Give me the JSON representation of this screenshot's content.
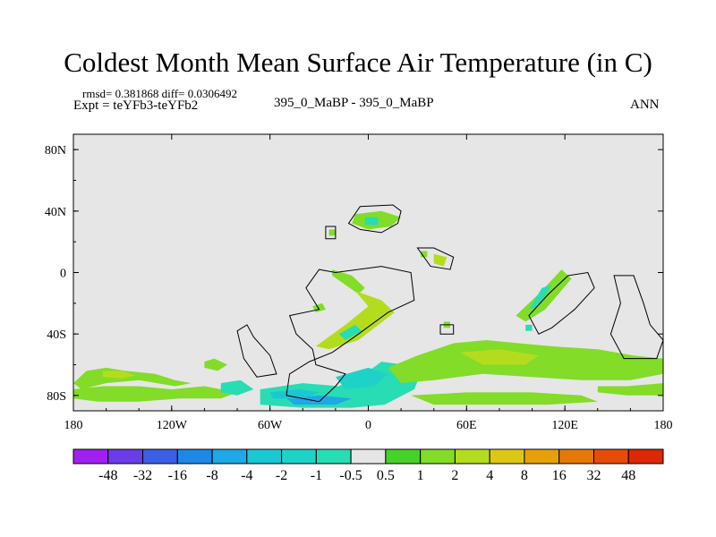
{
  "header": {
    "title": "Coldest Month Mean Surface Air Temperature (in C)",
    "stats": "rmsd= 0.381868  diff= 0.0306492",
    "experiment": "Expt = teYFb3-teYFb2",
    "center_label": "395_0_MaBP - 395_0_MaBP",
    "right_label": "ANN"
  },
  "chart_data": {
    "type": "heatmap",
    "title": "Coldest Month Mean Surface Air Temperature (in C)",
    "xlabel": "",
    "ylabel": "",
    "xlim": [
      -180,
      180
    ],
    "ylim": [
      -90,
      90
    ],
    "x_ticks": [
      {
        "value": -180,
        "label": "180"
      },
      {
        "value": -120,
        "label": "120W"
      },
      {
        "value": -60,
        "label": "60W"
      },
      {
        "value": 0,
        "label": "0"
      },
      {
        "value": 60,
        "label": "60E"
      },
      {
        "value": 120,
        "label": "120E"
      },
      {
        "value": 180,
        "label": "180"
      }
    ],
    "y_ticks": [
      {
        "value": 80,
        "label": "80N"
      },
      {
        "value": 40,
        "label": "40N"
      },
      {
        "value": 0,
        "label": "0"
      },
      {
        "value": -40,
        "label": "40S"
      },
      {
        "value": -80,
        "label": "80S"
      }
    ],
    "background_color": "#e6e6e6",
    "colorbar": {
      "labels": [
        "-48",
        "-32",
        "-16",
        "-8",
        "-4",
        "-2",
        "-1",
        "-0.5",
        "0.5",
        "1",
        "2",
        "4",
        "8",
        "16",
        "32",
        "48"
      ],
      "colors": [
        "#a020f0",
        "#6a3de6",
        "#3c5fe6",
        "#1e88e6",
        "#1ea8e6",
        "#19c8d2",
        "#1ed2c8",
        "#28dcb4",
        "#e6e6e6",
        "#46d228",
        "#82dc28",
        "#b4dc1e",
        "#dcc814",
        "#e6a00a",
        "#e6780a",
        "#e64b0a",
        "#dc2805"
      ]
    },
    "regions": [
      {
        "name": "south-pacific-band",
        "cat": 10,
        "poly": [
          [
            -180,
            -72
          ],
          [
            -172,
            -64
          ],
          [
            -160,
            -62
          ],
          [
            -148,
            -64
          ],
          [
            -130,
            -66
          ],
          [
            -118,
            -70
          ],
          [
            -108,
            -72
          ],
          [
            -118,
            -74
          ],
          [
            -140,
            -70
          ],
          [
            -160,
            -72
          ],
          [
            -175,
            -76
          ]
        ]
      },
      {
        "name": "south-pacific-core",
        "cat": 11,
        "poly": [
          [
            -162,
            -64
          ],
          [
            -150,
            -64
          ],
          [
            -142,
            -67
          ],
          [
            -150,
            -69
          ],
          [
            -162,
            -68
          ]
        ]
      },
      {
        "name": "antarctic-west-band",
        "cat": 10,
        "poly": [
          [
            -180,
            -76
          ],
          [
            -162,
            -74
          ],
          [
            -140,
            -74
          ],
          [
            -120,
            -76
          ],
          [
            -100,
            -74
          ],
          [
            -80,
            -78
          ],
          [
            -90,
            -82
          ],
          [
            -115,
            -82
          ],
          [
            -140,
            -84
          ],
          [
            -165,
            -84
          ],
          [
            -180,
            -82
          ]
        ]
      },
      {
        "name": "antarctic-west-cyan",
        "cat": 7,
        "poly": [
          [
            -90,
            -72
          ],
          [
            -78,
            -70
          ],
          [
            -70,
            -76
          ],
          [
            -80,
            -80
          ],
          [
            -90,
            -78
          ]
        ]
      },
      {
        "name": "antarctic-atlantic-cyan",
        "cat": 7,
        "poly": [
          [
            -66,
            -76
          ],
          [
            -40,
            -72
          ],
          [
            -18,
            -74
          ],
          [
            -2,
            -66
          ],
          [
            8,
            -58
          ],
          [
            22,
            -60
          ],
          [
            32,
            -66
          ],
          [
            28,
            -76
          ],
          [
            10,
            -86
          ],
          [
            -10,
            -88
          ],
          [
            -40,
            -88
          ],
          [
            -66,
            -86
          ]
        ]
      },
      {
        "name": "antarctic-atlantic-blue",
        "cat": 4,
        "poly": [
          [
            -50,
            -82
          ],
          [
            -30,
            -80
          ],
          [
            -10,
            -82
          ],
          [
            -20,
            -86
          ],
          [
            -45,
            -86
          ]
        ]
      },
      {
        "name": "antarctic-atlantic-deep",
        "cat": 5,
        "poly": [
          [
            -60,
            -78
          ],
          [
            -42,
            -76
          ],
          [
            -30,
            -78
          ],
          [
            -40,
            -82
          ],
          [
            -58,
            -82
          ]
        ]
      },
      {
        "name": "antarctic-atlantic-aqua",
        "cat": 6,
        "poly": [
          [
            -20,
            -68
          ],
          [
            0,
            -62
          ],
          [
            12,
            -66
          ],
          [
            4,
            -74
          ],
          [
            -14,
            -76
          ]
        ]
      },
      {
        "name": "indian-ocean-band",
        "cat": 10,
        "poly": [
          [
            12,
            -62
          ],
          [
            30,
            -54
          ],
          [
            52,
            -46
          ],
          [
            72,
            -44
          ],
          [
            92,
            -46
          ],
          [
            112,
            -48
          ],
          [
            140,
            -50
          ],
          [
            162,
            -54
          ],
          [
            180,
            -56
          ],
          [
            180,
            -66
          ],
          [
            160,
            -70
          ],
          [
            130,
            -70
          ],
          [
            100,
            -68
          ],
          [
            70,
            -66
          ],
          [
            40,
            -70
          ],
          [
            20,
            -72
          ]
        ]
      },
      {
        "name": "indian-ocean-core",
        "cat": 11,
        "poly": [
          [
            56,
            -52
          ],
          [
            80,
            -50
          ],
          [
            104,
            -54
          ],
          [
            96,
            -60
          ],
          [
            70,
            -60
          ]
        ]
      },
      {
        "name": "pacific-east-band",
        "cat": 10,
        "poly": [
          [
            140,
            -74
          ],
          [
            158,
            -74
          ],
          [
            180,
            -72
          ],
          [
            180,
            -80
          ],
          [
            158,
            -80
          ],
          [
            140,
            -78
          ]
        ]
      },
      {
        "name": "antarctic-east-band",
        "cat": 10,
        "poly": [
          [
            26,
            -80
          ],
          [
            60,
            -78
          ],
          [
            100,
            -78
          ],
          [
            130,
            -80
          ],
          [
            140,
            -84
          ],
          [
            110,
            -86
          ],
          [
            70,
            -86
          ],
          [
            40,
            -86
          ]
        ]
      },
      {
        "name": "caspian-patch",
        "cat": 10,
        "poly": [
          [
            -8,
            38
          ],
          [
            8,
            40
          ],
          [
            20,
            36
          ],
          [
            14,
            30
          ],
          [
            0,
            28
          ],
          [
            -10,
            32
          ]
        ]
      },
      {
        "name": "caspian-cyan",
        "cat": 7,
        "poly": [
          [
            -2,
            36
          ],
          [
            6,
            36
          ],
          [
            6,
            31
          ],
          [
            -2,
            31
          ]
        ]
      },
      {
        "name": "central-asia-dot",
        "cat": 10,
        "poly": [
          [
            -24,
            28
          ],
          [
            -20,
            28
          ],
          [
            -20,
            24
          ],
          [
            -24,
            24
          ]
        ]
      },
      {
        "name": "arabia-patch",
        "cat": 11,
        "poly": [
          [
            40,
            12
          ],
          [
            48,
            10
          ],
          [
            46,
            4
          ],
          [
            40,
            6
          ]
        ]
      },
      {
        "name": "arabia-dot",
        "cat": 10,
        "poly": [
          [
            32,
            14
          ],
          [
            36,
            14
          ],
          [
            36,
            10
          ],
          [
            32,
            10
          ]
        ]
      },
      {
        "name": "africa-ridge",
        "cat": 10,
        "poly": [
          [
            -22,
            2
          ],
          [
            -10,
            -2
          ],
          [
            -2,
            -10
          ],
          [
            -6,
            -14
          ],
          [
            -14,
            -8
          ],
          [
            -22,
            -2
          ]
        ]
      },
      {
        "name": "africa-slash",
        "cat": 11,
        "poly": [
          [
            -8,
            -12
          ],
          [
            8,
            -18
          ],
          [
            16,
            -26
          ],
          [
            -6,
            -44
          ],
          [
            -24,
            -50
          ],
          [
            -32,
            -48
          ],
          [
            -14,
            -34
          ],
          [
            0,
            -22
          ]
        ]
      },
      {
        "name": "africa-slash-cyan",
        "cat": 7,
        "poly": [
          [
            -18,
            -40
          ],
          [
            -8,
            -34
          ],
          [
            -4,
            -38
          ],
          [
            -14,
            -44
          ]
        ]
      },
      {
        "name": "africa-small",
        "cat": 10,
        "poly": [
          [
            -34,
            -22
          ],
          [
            -28,
            -20
          ],
          [
            -26,
            -24
          ],
          [
            -32,
            -26
          ]
        ]
      },
      {
        "name": "madagascar-dot",
        "cat": 10,
        "poly": [
          [
            46,
            -32
          ],
          [
            50,
            -32
          ],
          [
            50,
            -36
          ],
          [
            46,
            -36
          ]
        ]
      },
      {
        "name": "india-streak",
        "cat": 10,
        "poly": [
          [
            118,
            2
          ],
          [
            124,
            -4
          ],
          [
            108,
            -24
          ],
          [
            96,
            -32
          ],
          [
            90,
            -28
          ],
          [
            104,
            -14
          ]
        ]
      },
      {
        "name": "india-streak-cyan",
        "cat": 7,
        "poly": [
          [
            106,
            -10
          ],
          [
            112,
            -8
          ],
          [
            104,
            -22
          ],
          [
            98,
            -24
          ]
        ]
      },
      {
        "name": "india-dot",
        "cat": 7,
        "poly": [
          [
            96,
            -34
          ],
          [
            100,
            -34
          ],
          [
            100,
            -38
          ],
          [
            96,
            -38
          ]
        ]
      },
      {
        "name": "chile-band",
        "cat": 10,
        "poly": [
          [
            -100,
            -58
          ],
          [
            -94,
            -56
          ],
          [
            -86,
            -60
          ],
          [
            -92,
            -64
          ],
          [
            -100,
            -62
          ]
        ]
      }
    ],
    "outlines": [
      {
        "name": "land-outline-1",
        "points": [
          [
            -5,
            43
          ],
          [
            15,
            44
          ],
          [
            20,
            40
          ],
          [
            18,
            32
          ],
          [
            8,
            26
          ],
          [
            -5,
            28
          ],
          [
            -12,
            32
          ]
        ]
      },
      {
        "name": "land-outline-2",
        "points": [
          [
            -26,
            30
          ],
          [
            -20,
            30
          ],
          [
            -20,
            22
          ],
          [
            -26,
            22
          ]
        ]
      },
      {
        "name": "land-outline-3",
        "points": [
          [
            30,
            16
          ],
          [
            40,
            16
          ],
          [
            52,
            10
          ],
          [
            50,
            2
          ],
          [
            38,
            4
          ]
        ]
      },
      {
        "name": "land-outline-4",
        "points": [
          [
            -30,
            2
          ],
          [
            -20,
            0
          ],
          [
            8,
            4
          ],
          [
            26,
            0
          ],
          [
            28,
            -18
          ],
          [
            12,
            -26
          ],
          [
            -6,
            -40
          ],
          [
            -22,
            -52
          ],
          [
            -36,
            -58
          ],
          [
            -48,
            -66
          ],
          [
            -50,
            -80
          ],
          [
            -30,
            -84
          ],
          [
            -20,
            -74
          ],
          [
            -14,
            -66
          ],
          [
            -32,
            -60
          ],
          [
            -34,
            -50
          ],
          [
            -44,
            -40
          ],
          [
            -48,
            -28
          ],
          [
            -30,
            -24
          ],
          [
            -38,
            -10
          ]
        ]
      },
      {
        "name": "land-outline-5",
        "points": [
          [
            44,
            -34
          ],
          [
            52,
            -34
          ],
          [
            52,
            -40
          ],
          [
            44,
            -40
          ]
        ]
      },
      {
        "name": "land-outline-6",
        "points": [
          [
            98,
            -28
          ],
          [
            110,
            -14
          ],
          [
            122,
            -2
          ],
          [
            134,
            0
          ],
          [
            138,
            -10
          ],
          [
            126,
            -24
          ],
          [
            112,
            -36
          ],
          [
            104,
            -40
          ]
        ]
      },
      {
        "name": "land-outline-7",
        "points": [
          [
            150,
            -2
          ],
          [
            162,
            -2
          ],
          [
            168,
            -20
          ],
          [
            172,
            -34
          ],
          [
            180,
            -44
          ],
          [
            176,
            -56
          ],
          [
            156,
            -56
          ],
          [
            148,
            -40
          ],
          [
            154,
            -20
          ]
        ]
      },
      {
        "name": "land-outline-8",
        "points": [
          [
            -80,
            -38
          ],
          [
            -74,
            -34
          ],
          [
            -70,
            -42
          ],
          [
            -60,
            -54
          ],
          [
            -56,
            -66
          ],
          [
            -68,
            -68
          ],
          [
            -76,
            -56
          ]
        ]
      }
    ]
  }
}
